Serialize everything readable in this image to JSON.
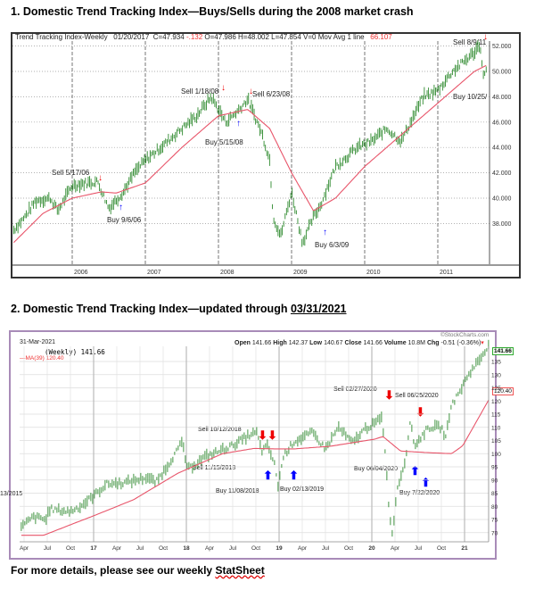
{
  "title1": "1. Domestic Trend Tracking Index—Buys/Sells during the 2008 market crash",
  "title2_prefix": "2. Domestic Trend Tracking Index—updated through ",
  "title2_date": "03/31/2021",
  "footer_prefix": "For more details, please see our weekly ",
  "footer_link": "StatSheet",
  "chart1_header": {
    "name": "Trend Tracking Index-Weekly",
    "date": "01/20/2017",
    "c": "C=47.934",
    "chg": "-.132",
    "o": "O=47.986",
    "h": "H=48.002",
    "l": "L=47.854",
    "v": "V=0",
    "ma": "Mov Avg 1 line",
    "ma_val": "66.107"
  },
  "chart2_header": {
    "date": "31-Mar-2021",
    "brand": "©StockCharts.com",
    "open_l": "Open",
    "open": "141.66",
    "high_l": "High",
    "high": "142.37",
    "low_l": "Low",
    "low": "140.67",
    "close_l": "Close",
    "close": "141.66",
    "volume_l": "Volume",
    "volume": "10.8M",
    "chg_l": "Chg",
    "chg": "-0.51 (-0.36%)",
    "series": "(Weekly) 141.66",
    "ma": "MA(39) 120.40",
    "last_box": "141.66",
    "ma_box": "120.40"
  },
  "colors": {
    "price": "#2f8a2f",
    "ma": "#e8556a",
    "sell": "#e00",
    "buy": "#00f"
  },
  "chart_data": [
    {
      "type": "line",
      "title": "Trend Tracking Index-Weekly",
      "ylim": [
        36,
        53
      ],
      "yticks": [
        "38.000",
        "40.000",
        "42.000",
        "44.000",
        "46.000",
        "48.000",
        "50.000",
        "52.000"
      ],
      "ytick_values": [
        38,
        40,
        42,
        44,
        46,
        48,
        50,
        52
      ],
      "xticks": [
        "2006",
        "2007",
        "2008",
        "2009",
        "2010",
        "2011"
      ],
      "series": [
        {
          "name": "Index",
          "x": [
            2005.2,
            2005.35,
            2005.5,
            2005.7,
            2005.8,
            2006.0,
            2006.2,
            2006.35,
            2006.5,
            2006.7,
            2006.85,
            2007.0,
            2007.25,
            2007.5,
            2007.7,
            2007.9,
            2008.1,
            2008.25,
            2008.4,
            2008.6,
            2008.7,
            2008.75,
            2008.85,
            2009.0,
            2009.15,
            2009.3,
            2009.4,
            2009.6,
            2009.9,
            2010.1,
            2010.3,
            2010.5,
            2010.8,
            2011.0,
            2011.2,
            2011.5,
            2011.58,
            2011.62,
            2011.67
          ],
          "y": [
            37.5,
            38.5,
            39.8,
            40,
            39,
            41,
            41.2,
            41.3,
            39.2,
            40.5,
            42,
            43,
            44.2,
            45.5,
            46.5,
            48,
            46,
            46.8,
            47.8,
            45,
            43,
            38.5,
            37,
            40.5,
            36.5,
            38.5,
            39.5,
            42.5,
            44,
            44.5,
            45.5,
            44.5,
            48,
            48.5,
            50,
            51.5,
            52.2,
            49.5,
            50.5
          ]
        },
        {
          "name": "Mov Avg",
          "x": [
            2005.2,
            2005.6,
            2006.0,
            2006.4,
            2006.6,
            2007.0,
            2007.5,
            2008.0,
            2008.4,
            2008.7,
            2009.0,
            2009.3,
            2009.6,
            2010.0,
            2010.5,
            2011.0,
            2011.5,
            2011.67
          ],
          "y": [
            36.5,
            38.8,
            40,
            40.5,
            40.4,
            41.2,
            44,
            46.5,
            47,
            45.5,
            42,
            39,
            40,
            42.5,
            45,
            47.5,
            50,
            50.5
          ]
        }
      ],
      "annotations": [
        {
          "label": "Sell 1/18/08",
          "signal": "sell"
        },
        {
          "label": "Sell 6/23/08",
          "signal": "sell"
        },
        {
          "label": "Buy 5/15/08",
          "signal": "buy"
        },
        {
          "label": "Sell 5/17/06",
          "signal": "sell"
        },
        {
          "label": "Buy 9/6/06",
          "signal": "buy"
        },
        {
          "label": "Buy 6/3/09",
          "signal": "buy"
        },
        {
          "label": "Sell 8/9/11",
          "signal": "sell"
        },
        {
          "label": "Buy 10/25/",
          "signal": "buy"
        }
      ]
    },
    {
      "type": "line",
      "title": "(Weekly) 141.66",
      "ylim": [
        68,
        142
      ],
      "yticks": [
        "70",
        "75",
        "80",
        "85",
        "90",
        "95",
        "100",
        "105",
        "110",
        "115",
        "120",
        "125",
        "130",
        "135"
      ],
      "ytick_values": [
        70,
        75,
        80,
        85,
        90,
        95,
        100,
        105,
        110,
        115,
        120,
        125,
        130,
        135
      ],
      "xticks": [
        "Apr",
        "Jul",
        "Oct",
        "17",
        "Apr",
        "Jul",
        "Oct",
        "18",
        "Apr",
        "Jul",
        "Oct",
        "19",
        "Apr",
        "Jul",
        "Oct",
        "20",
        "Apr",
        "Jul",
        "Oct",
        "21"
      ],
      "series": [
        {
          "name": "Weekly",
          "x": [
            2016.22,
            2016.35,
            2016.49,
            2016.52,
            2016.74,
            2016.86,
            2017.0,
            2017.14,
            2017.34,
            2017.58,
            2017.67,
            2017.77,
            2017.96,
            2018.01,
            2018.2,
            2018.49,
            2018.68,
            2018.76,
            2018.81,
            2018.88,
            2018.95,
            2018.99,
            2019.05,
            2019.16,
            2019.36,
            2019.5,
            2019.64,
            2019.79,
            2019.93,
            2020.01,
            2020.11,
            2020.14,
            2020.18,
            2020.22,
            2020.27,
            2020.37,
            2020.41,
            2020.46,
            2020.61,
            2020.75,
            2020.8,
            2020.85,
            2020.94,
            2021.04,
            2021.18,
            2021.26
          ],
          "y": [
            72,
            76,
            75,
            79,
            78,
            80,
            84,
            88.5,
            89,
            91,
            89,
            94,
            104.5,
            94,
            98.7,
            103,
            107,
            108,
            101,
            103,
            96,
            88,
            99.4,
            104.5,
            108,
            101.8,
            110,
            104,
            109.6,
            111,
            113.6,
            103,
            82,
            69,
            86,
            99,
            113,
            103,
            110,
            110,
            106,
            118,
            123,
            130,
            136.7,
            141.66
          ]
        },
        {
          "name": "MA(39)",
          "x": [
            2016.22,
            2016.46,
            2016.75,
            2017.0,
            2017.43,
            2017.91,
            2018.39,
            2018.73,
            2018.97,
            2019.16,
            2019.55,
            2020.03,
            2020.12,
            2020.31,
            2020.6,
            2020.86,
            2020.98,
            2021.26
          ],
          "y": [
            69,
            69,
            73,
            76.4,
            82.5,
            92.6,
            100,
            102,
            101.8,
            101.8,
            102.8,
            105.5,
            106.5,
            101,
            100.4,
            100,
            103,
            120.4
          ]
        }
      ],
      "annotations": [
        {
          "label": "Sell 10/12/2018",
          "signal": "sell"
        },
        {
          "label": "Sell 11/15/2018",
          "signal": "sell"
        },
        {
          "label": "Buy 11/08/2018",
          "signal": "buy"
        },
        {
          "label": "Buy 02/13/2019",
          "signal": "buy"
        },
        {
          "label": "13/2015",
          "signal": "buy"
        },
        {
          "label": "Sell 02/27/2020",
          "signal": "sell"
        },
        {
          "label": "Sell 06/25/2020",
          "signal": "sell"
        },
        {
          "label": "Buy 06/04/2020",
          "signal": "buy"
        },
        {
          "label": "Buy 7/22/2020",
          "signal": "buy"
        }
      ]
    }
  ]
}
